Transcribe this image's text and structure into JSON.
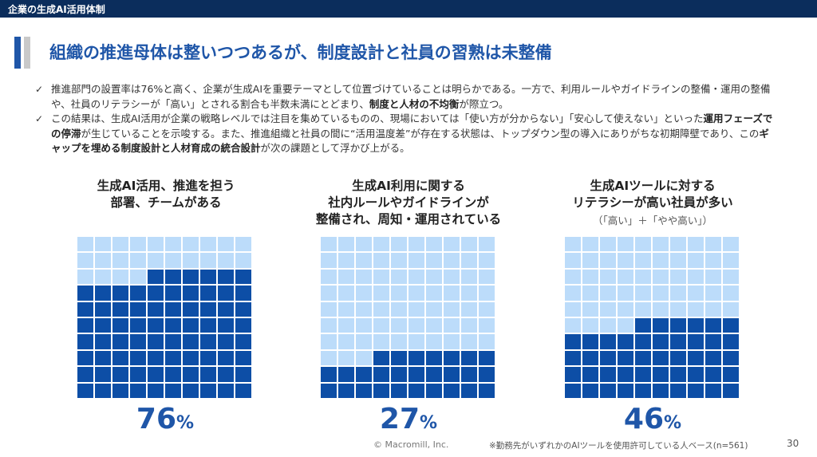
{
  "header": {
    "title": "企業の生成AI活用体制"
  },
  "headline": "組織の推進母体は整いつつあるが、制度設計と社員の習熟は未整備",
  "bullets": [
    {
      "segments": [
        {
          "text": "推進部門の設置率は76%と高く、企業が生成AIを重要テーマとして位置づけていることは明らかである。一方で、利用ルールやガイドラインの整備・運用の整備や、社員のリテラシーが「高い」とされる割合も半数未満にとどまり、",
          "bold": false
        },
        {
          "text": "制度と人材の不均衡",
          "bold": true
        },
        {
          "text": "が際立つ。",
          "bold": false
        }
      ]
    },
    {
      "segments": [
        {
          "text": "この結果は、生成AI活用が企業の戦略レベルでは注目を集めているものの、現場においては「使い方が分からない」「安心して使えない」といった",
          "bold": false
        },
        {
          "text": "運用フェーズでの停滞",
          "bold": true
        },
        {
          "text": "が生じていることを示唆する。また、推進組織と社員の間に“活用温度差”が存在する状態は、トップダウン型の導入にありがちな初期障壁であり、この",
          "bold": false
        },
        {
          "text": "ギャップを埋める制度設計と人材育成の統合設計",
          "bold": true
        },
        {
          "text": "が次の課題として浮かび上がる。",
          "bold": false
        }
      ]
    }
  ],
  "chart_data": [
    {
      "type": "waffle",
      "title_lines": [
        "生成AI活用、推進を担う",
        "部署、チームがある"
      ],
      "subtitle": "",
      "value": 76,
      "value_label": "76",
      "unit": "%",
      "grid": [
        10,
        10
      ],
      "colors": {
        "filled": "#0d4ea6",
        "empty": "#bcdcfa"
      }
    },
    {
      "type": "waffle",
      "title_lines": [
        "生成AI利用に関する",
        "社内ルールやガイドラインが",
        "整備され、周知・運用されている"
      ],
      "subtitle": "",
      "value": 27,
      "value_label": "27",
      "unit": "%",
      "grid": [
        10,
        10
      ],
      "colors": {
        "filled": "#0d4ea6",
        "empty": "#bcdcfa"
      }
    },
    {
      "type": "waffle",
      "title_lines": [
        "生成AIツールに対する",
        "リテラシーが高い社員が多い"
      ],
      "subtitle": "（「高い」＋「やや高い」）",
      "value": 46,
      "value_label": "46",
      "unit": "%",
      "grid": [
        10,
        10
      ],
      "colors": {
        "filled": "#0d4ea6",
        "empty": "#bcdcfa"
      }
    }
  ],
  "footer": {
    "copyright": "© Macromill, Inc.",
    "footnote": "※勤務先がいずれかのAIツールを使用許可している人ベース(n=561)",
    "page": "30"
  }
}
